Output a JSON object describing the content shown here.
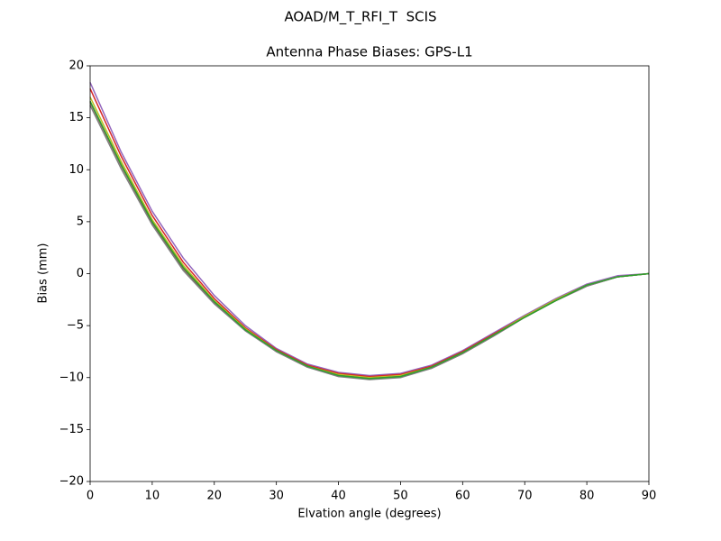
{
  "chart_data": {
    "type": "line",
    "suptitle": "AOAD/M_T_RFI_T  SCIS",
    "title": "Antenna Phase Biases: GPS-L1",
    "xlabel": "Elvation angle (degrees)",
    "ylabel": "Bias (mm)",
    "x": [
      0,
      5,
      10,
      15,
      20,
      25,
      30,
      35,
      40,
      45,
      50,
      55,
      60,
      65,
      70,
      75,
      80,
      85,
      90
    ],
    "xlim": [
      0,
      90
    ],
    "xticks": [
      0,
      10,
      20,
      30,
      40,
      50,
      60,
      70,
      80,
      90
    ],
    "ylim": [
      -20,
      20
    ],
    "yticks": [
      {
        "value": -20,
        "label": "−20"
      },
      {
        "value": -15,
        "label": "−15"
      },
      {
        "value": -10,
        "label": "−10"
      },
      {
        "value": -5,
        "label": "−5"
      },
      0,
      5,
      10,
      15,
      20
    ],
    "series": [
      {
        "color": "#9467bd",
        "values": [
          18.4,
          11.7,
          6.0,
          1.5,
          -2.1,
          -5.0,
          -7.2,
          -8.7,
          -9.5,
          -9.8,
          -9.6,
          -8.8,
          -7.4,
          -5.7,
          -4.0,
          -2.4,
          -1.0,
          -0.2,
          0
        ]
      },
      {
        "color": "#d62728",
        "values": [
          17.8,
          11.3,
          5.6,
          1.1,
          -2.4,
          -5.2,
          -7.3,
          -8.8,
          -9.6,
          -9.9,
          -9.7,
          -8.9,
          -7.5,
          -5.8,
          -4.1,
          -2.5,
          -1.1,
          -0.3,
          0
        ]
      },
      {
        "color": "#bcbd22",
        "values": [
          17.0,
          10.8,
          5.2,
          0.8,
          -2.6,
          -5.3,
          -7.4,
          -8.9,
          -9.7,
          -10.0,
          -9.8,
          -9.0,
          -7.6,
          -5.9,
          -4.1,
          -2.5,
          -1.1,
          -0.3,
          0
        ]
      },
      {
        "color": "#8c564b",
        "values": [
          16.5,
          10.4,
          4.9,
          0.5,
          -2.8,
          -5.4,
          -7.5,
          -9.0,
          -9.8,
          -10.1,
          -9.9,
          -9.1,
          -7.7,
          -6.0,
          -4.2,
          -2.6,
          -1.2,
          -0.3,
          0
        ]
      },
      {
        "color": "#7f7f7f",
        "values": [
          16.2,
          10.1,
          4.7,
          0.3,
          -2.9,
          -5.5,
          -7.5,
          -9.0,
          -9.9,
          -10.2,
          -10.0,
          -9.1,
          -7.7,
          -6.0,
          -4.2,
          -2.6,
          -1.2,
          -0.3,
          0
        ]
      },
      {
        "color": "#2ca02c",
        "values": [
          16.6,
          10.5,
          5.0,
          0.6,
          -2.7,
          -5.4,
          -7.4,
          -8.9,
          -9.8,
          -10.1,
          -9.9,
          -9.0,
          -7.6,
          -5.9,
          -4.2,
          -2.6,
          -1.1,
          -0.3,
          0
        ]
      }
    ]
  }
}
